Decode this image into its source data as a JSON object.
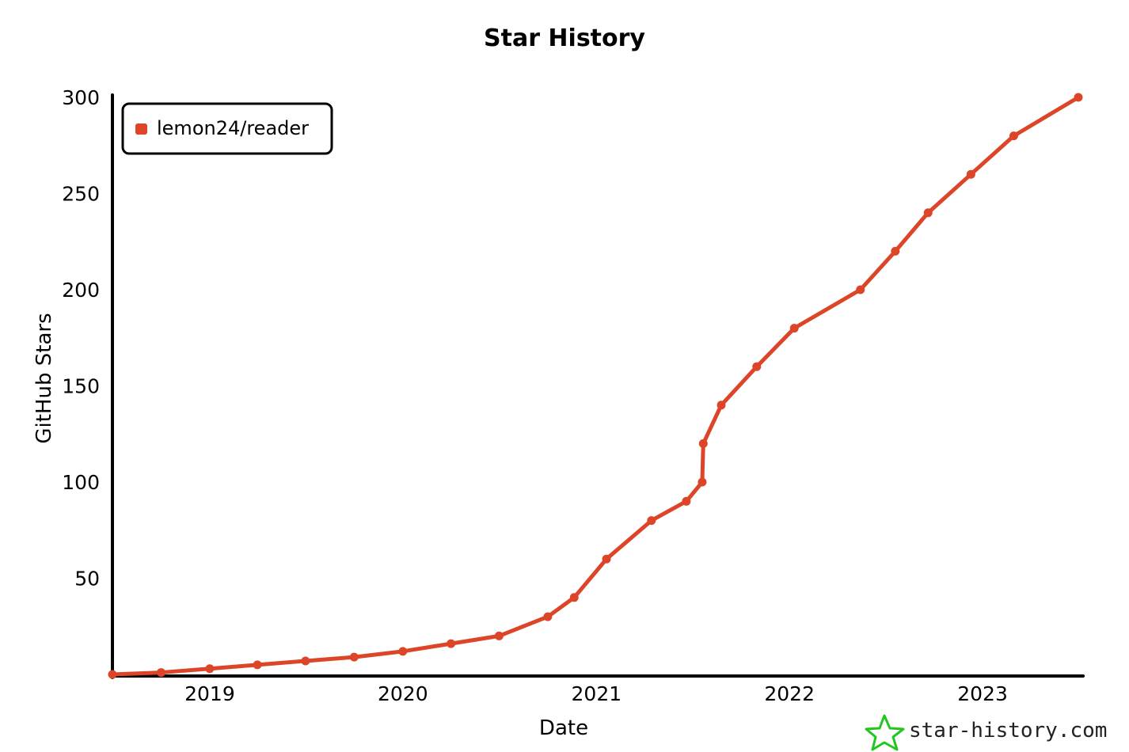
{
  "chart_data": {
    "type": "line",
    "title": "Star History",
    "xlabel": "Date",
    "ylabel": "GitHub Stars",
    "x_ticks": [
      "2019",
      "2020",
      "2021",
      "2022",
      "2023"
    ],
    "y_ticks": [
      50,
      100,
      150,
      200,
      250,
      300
    ],
    "ylim": [
      0,
      300
    ],
    "xlim": [
      "2018-07-01",
      "2023-07-10"
    ],
    "legend_position": "top-left",
    "series": [
      {
        "name": "lemon24/reader",
        "color": "#dd4528",
        "points": [
          {
            "x": "2018-07-01",
            "y": 0
          },
          {
            "x": "2018-10-01",
            "y": 1
          },
          {
            "x": "2019-01-01",
            "y": 3
          },
          {
            "x": "2019-04-01",
            "y": 5
          },
          {
            "x": "2019-07-01",
            "y": 7
          },
          {
            "x": "2019-10-01",
            "y": 9
          },
          {
            "x": "2020-01-01",
            "y": 12
          },
          {
            "x": "2020-04-01",
            "y": 16
          },
          {
            "x": "2020-07-01",
            "y": 20
          },
          {
            "x": "2020-10-01",
            "y": 30
          },
          {
            "x": "2020-11-20",
            "y": 40
          },
          {
            "x": "2021-01-20",
            "y": 60
          },
          {
            "x": "2021-04-15",
            "y": 80
          },
          {
            "x": "2021-06-20",
            "y": 90
          },
          {
            "x": "2021-07-20",
            "y": 100
          },
          {
            "x": "2021-07-22",
            "y": 120
          },
          {
            "x": "2021-08-25",
            "y": 140
          },
          {
            "x": "2021-10-31",
            "y": 160
          },
          {
            "x": "2022-01-10",
            "y": 180
          },
          {
            "x": "2022-05-15",
            "y": 200
          },
          {
            "x": "2022-07-20",
            "y": 220
          },
          {
            "x": "2022-09-20",
            "y": 240
          },
          {
            "x": "2022-12-10",
            "y": 260
          },
          {
            "x": "2023-03-01",
            "y": 280
          },
          {
            "x": "2023-07-01",
            "y": 300
          }
        ]
      }
    ]
  },
  "watermark": {
    "text": "star-history.com",
    "icon": "star-icon",
    "icon_color": "#22c71e"
  }
}
